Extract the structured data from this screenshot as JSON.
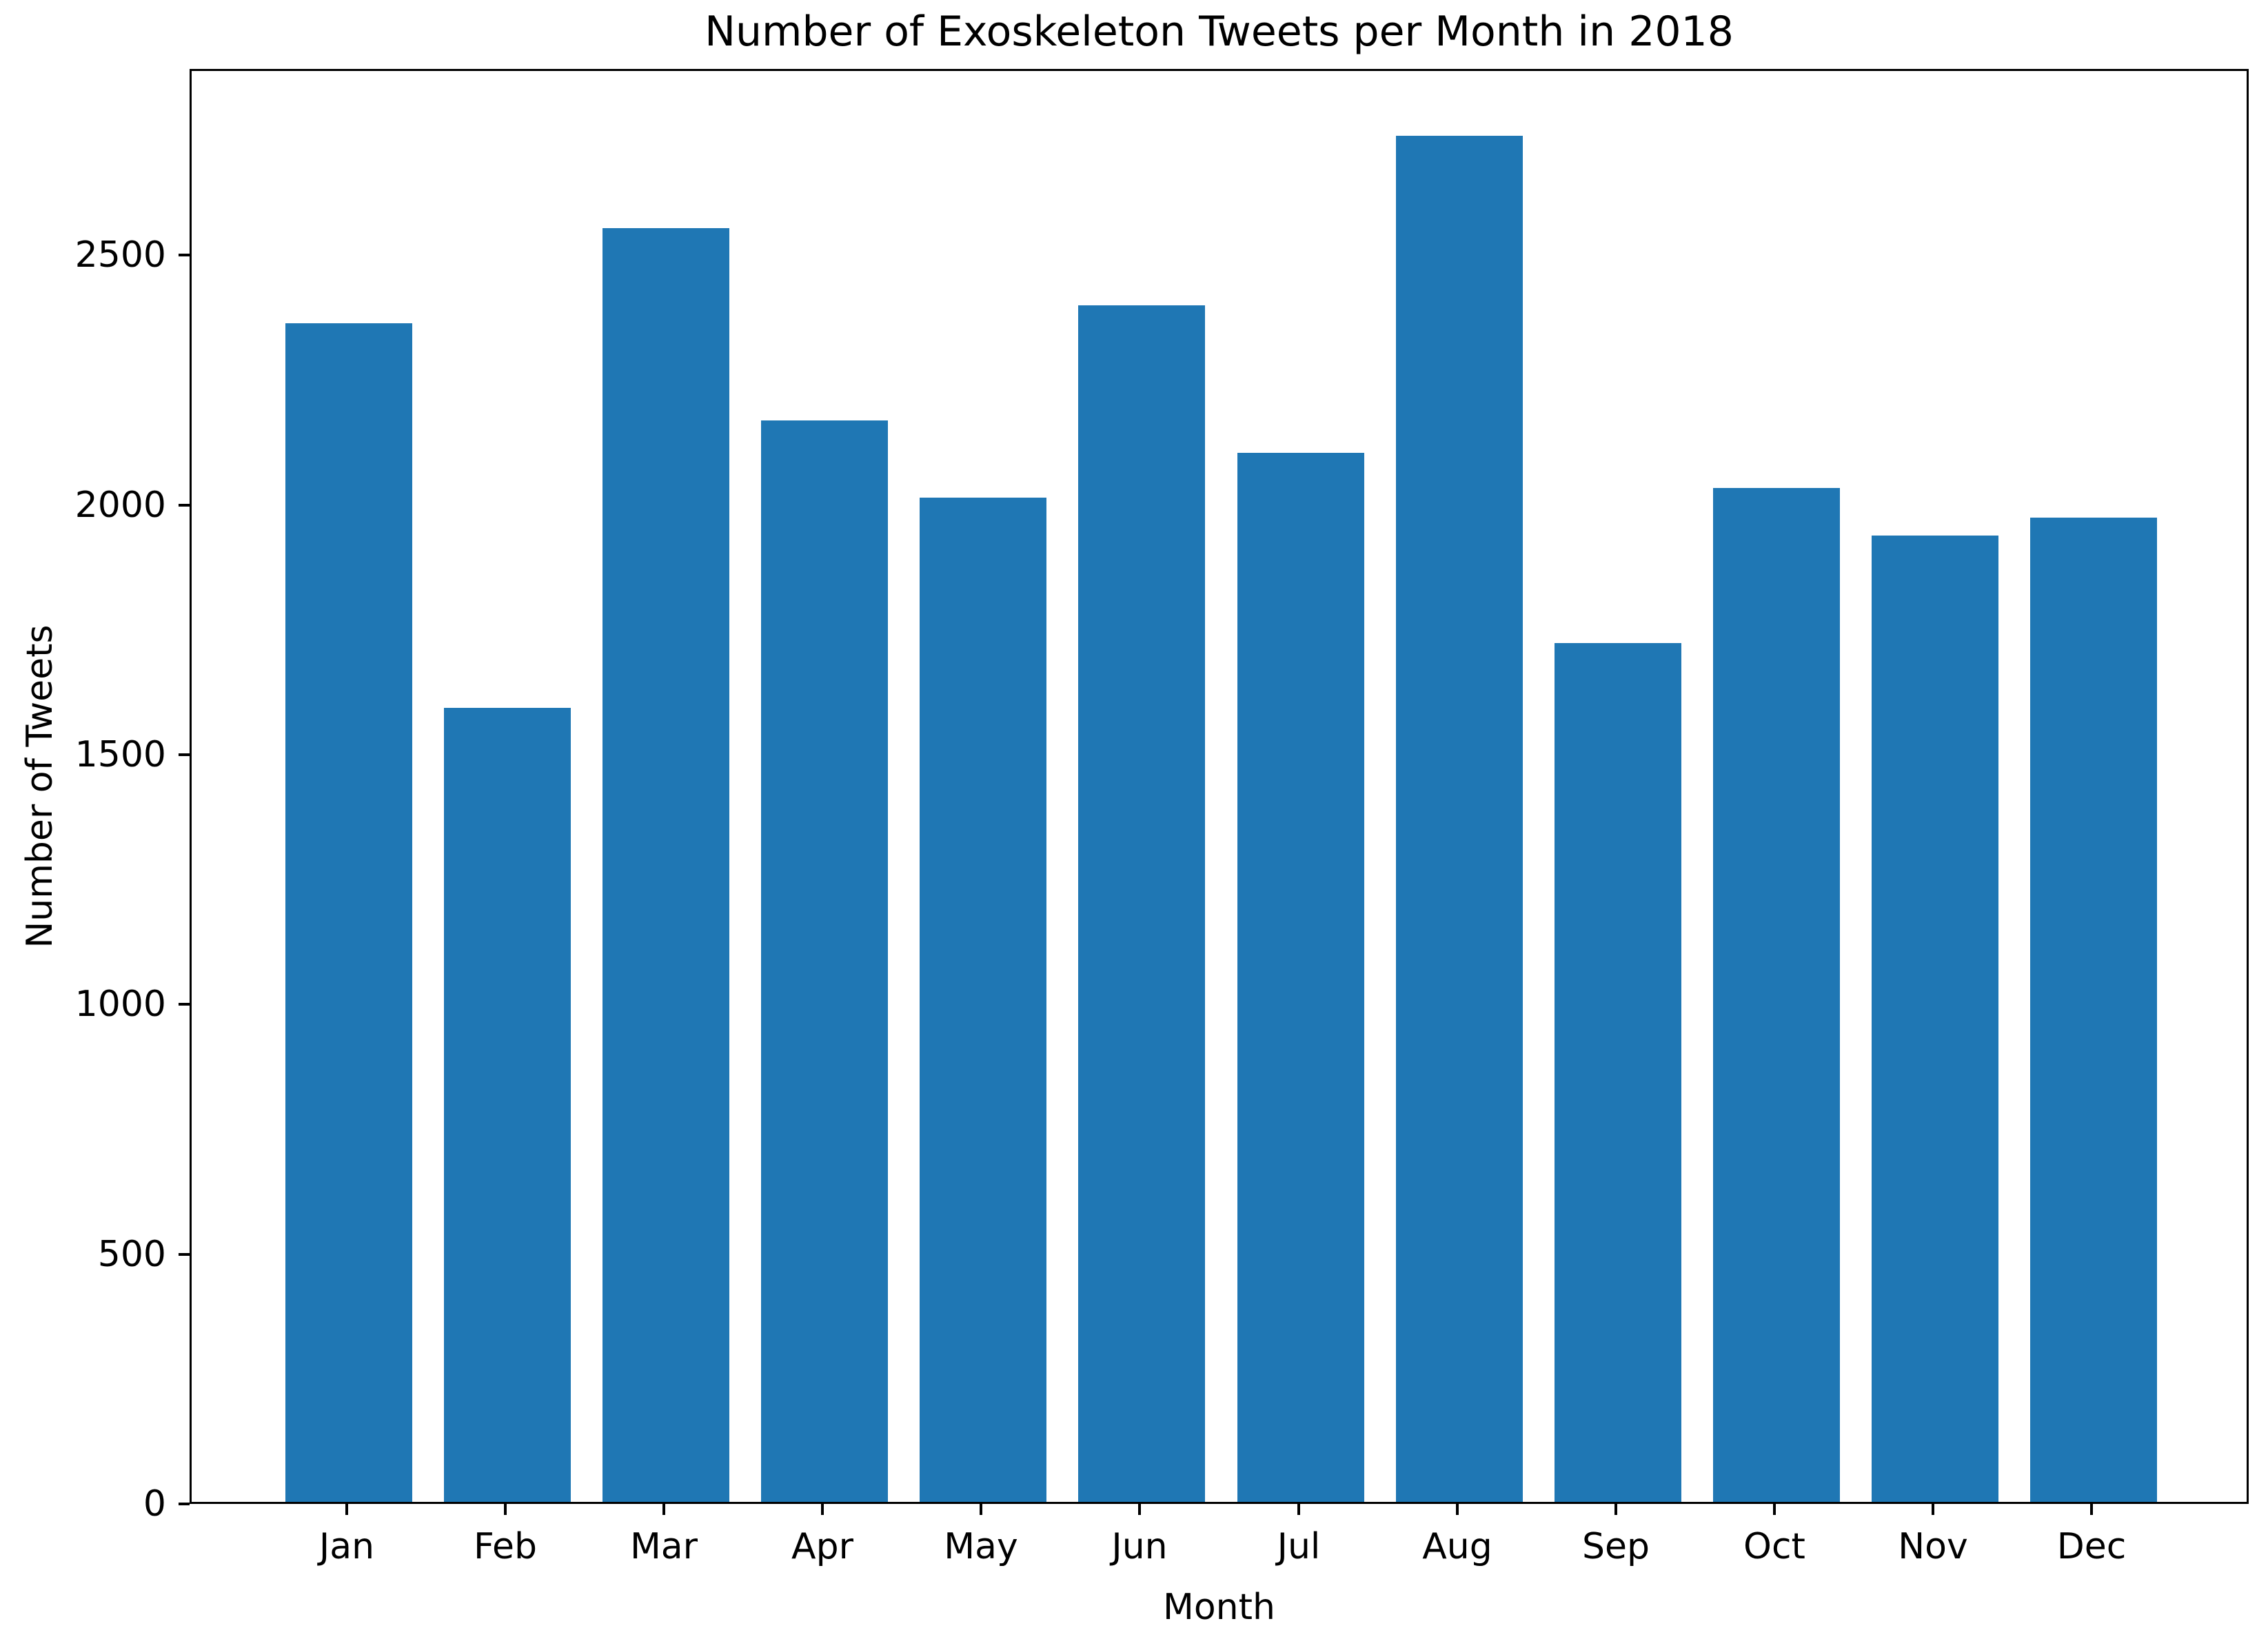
{
  "chart_data": {
    "type": "bar",
    "title": "Number of Exoskeleton Tweets per Month in 2018",
    "xlabel": "Month",
    "ylabel": "Number of Tweets",
    "categories": [
      "Jan",
      "Feb",
      "Mar",
      "Apr",
      "May",
      "Jun",
      "Jul",
      "Aug",
      "Sep",
      "Oct",
      "Nov",
      "Dec"
    ],
    "values": [
      2360,
      1590,
      2550,
      2165,
      2010,
      2395,
      2100,
      2735,
      1720,
      2030,
      1935,
      1970
    ],
    "yticks": [
      0,
      500,
      1000,
      1500,
      2000,
      2500
    ],
    "ylim": [
      0,
      2873
    ],
    "bar_color": "#1f77b4",
    "background_color": "#ffffff",
    "grid": false,
    "legend": "none"
  }
}
